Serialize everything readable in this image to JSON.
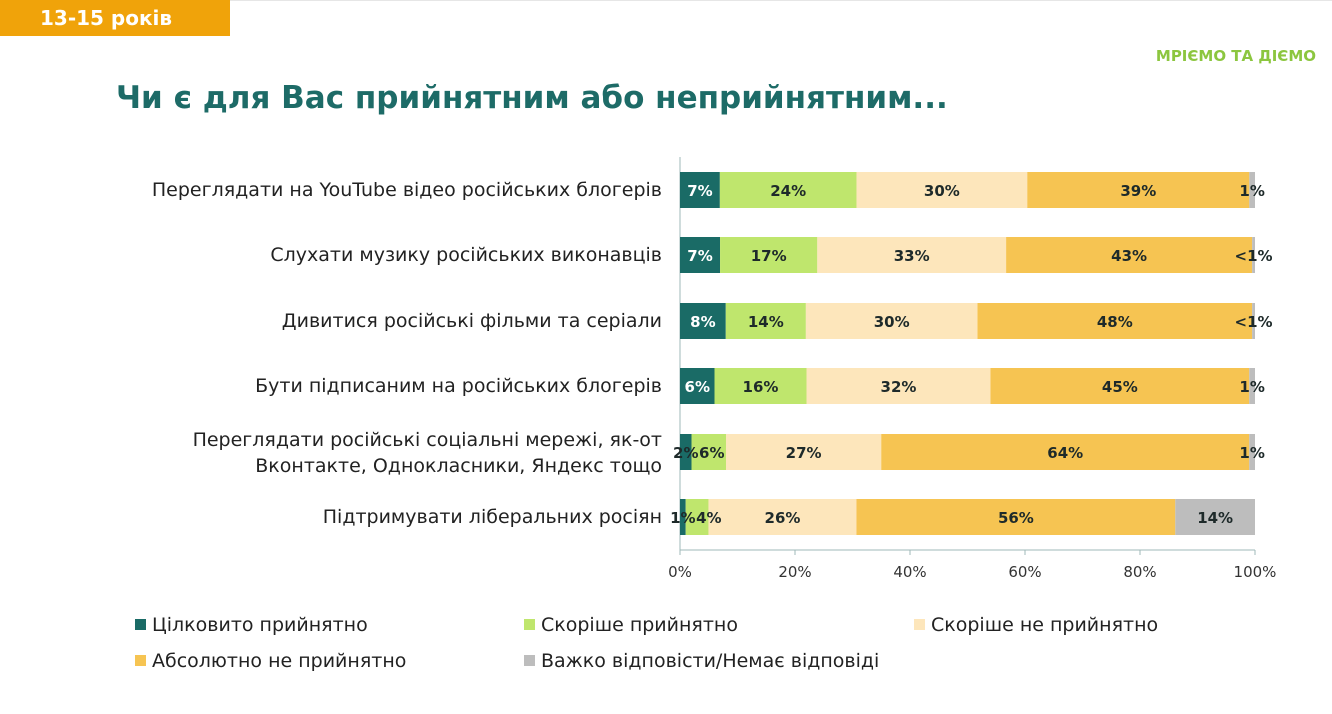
{
  "header": {
    "badge": "13-15 років",
    "logo": "МРІЄМО ТА ДІЄМО",
    "title": "Чи є для Вас прийнятним або неприйнятним..."
  },
  "chart_data": {
    "type": "bar",
    "orientation": "horizontal",
    "stacked": true,
    "categories": [
      [
        "Переглядати на YouTube відео російських блогерів"
      ],
      [
        "Слухати музику російських виконавців"
      ],
      [
        "Дивитися російські фільми та серіали"
      ],
      [
        "Бути підписаним на російських блогерів"
      ],
      [
        "Переглядати російські соціальні мережі,  як-от",
        "Вконтакте, Однокласники, Яндекс тощо"
      ],
      [
        "Підтримувати ліберальних росіян"
      ]
    ],
    "series": [
      {
        "name": "Цілковито прийнятно",
        "color": "#1a6b66",
        "values": [
          7,
          7,
          8,
          6,
          2,
          1
        ],
        "labels": [
          "7%",
          "7%",
          "8%",
          "6%",
          "2%",
          "1%"
        ]
      },
      {
        "name": "Скоріше прийнятно",
        "color": "#bfe66d",
        "values": [
          24,
          17,
          14,
          16,
          6,
          4
        ],
        "labels": [
          "24%",
          "17%",
          "14%",
          "16%",
          "6%",
          "4%"
        ]
      },
      {
        "name": "Скоріше не прийнятно",
        "color": "#fde6bb",
        "values": [
          30,
          33,
          30,
          32,
          27,
          26
        ],
        "labels": [
          "30%",
          "33%",
          "30%",
          "32%",
          "27%",
          "26%"
        ]
      },
      {
        "name": "Абсолютно не прийнятно",
        "color": "#f6c452",
        "values": [
          39,
          43,
          48,
          45,
          64,
          56
        ],
        "labels": [
          "39%",
          "43%",
          "48%",
          "45%",
          "64%",
          "56%"
        ]
      },
      {
        "name": "Важко відповісти/Немає відповіді",
        "color": "#bdbdbd",
        "values": [
          1,
          0.5,
          0.5,
          1,
          1,
          14
        ],
        "labels": [
          "1%",
          "<1%",
          "<1%",
          "1%",
          "1%",
          "14%"
        ]
      }
    ],
    "xticks": [
      "0%",
      "20%",
      "40%",
      "60%",
      "80%",
      "100%"
    ],
    "xlim": [
      0,
      100
    ],
    "grid": false,
    "legend_position": "bottom"
  }
}
